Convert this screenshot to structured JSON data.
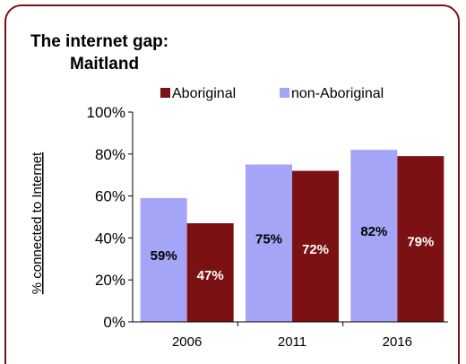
{
  "colors": {
    "frame": "#7b1113",
    "aboriginal": "#7b1113",
    "non_aboriginal": "#a5a5f7",
    "label_on_light": "#000000",
    "label_on_dark": "#ffffff"
  },
  "chart_data": {
    "type": "bar",
    "title_line1": "The internet gap:",
    "title_line2": "Maitland",
    "ylabel": "% connected to Internet",
    "xlabel": "",
    "categories": [
      "2006",
      "2011",
      "2016"
    ],
    "ylim": [
      0,
      100
    ],
    "yticks": [
      "0%",
      "20%",
      "40%",
      "60%",
      "80%",
      "100%"
    ],
    "ytick_values": [
      0,
      20,
      40,
      60,
      80,
      100
    ],
    "grid": false,
    "legend_position": "top",
    "legend": [
      "Aboriginal",
      "non-Aboriginal"
    ],
    "series": [
      {
        "name": "non-Aboriginal",
        "values": [
          59,
          75,
          82
        ],
        "labels": [
          "59%",
          "75%",
          "82%"
        ]
      },
      {
        "name": "Aboriginal",
        "values": [
          47,
          72,
          79
        ],
        "labels": [
          "47%",
          "72%",
          "79%"
        ]
      }
    ]
  }
}
